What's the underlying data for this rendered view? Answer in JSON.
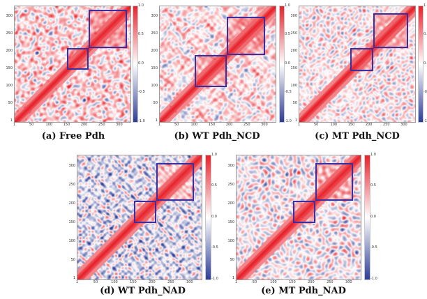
{
  "colors": {
    "positive": "#e8212a",
    "negative": "#2c3d98",
    "neutral": "#ffffff",
    "box_outline": "#3a2fa0"
  },
  "colorbar_ticks": [
    "1.0",
    "0.5",
    "0.0",
    "-0.5",
    "-1.0"
  ],
  "panels": [
    {
      "id": "a",
      "caption": "(a) Free Pdh",
      "y_ticks": [
        "300",
        "250",
        "200",
        "150",
        "100",
        "50",
        "1"
      ],
      "x_ticks": [
        "1",
        "50",
        "100",
        "150",
        "200",
        "250",
        "300"
      ],
      "residue_max": 330,
      "boxes": [
        {
          "from": 150,
          "to": 210
        },
        {
          "from": 210,
          "to": 320
        }
      ]
    },
    {
      "id": "b",
      "caption": "(b) WT Pdh_NCD",
      "y_ticks": [
        "300",
        "250",
        "200",
        "150",
        "100",
        "50",
        "1"
      ],
      "x_ticks": [
        "1",
        "50",
        "100",
        "150",
        "200",
        "250",
        "300"
      ],
      "residue_max": 330,
      "boxes": [
        {
          "from": 100,
          "to": 190
        },
        {
          "from": 190,
          "to": 300
        }
      ]
    },
    {
      "id": "c",
      "caption": "(c) MT Pdh_NCD",
      "y_ticks": [
        "300",
        "250",
        "200",
        "150",
        "100",
        "50",
        "1"
      ],
      "x_ticks": [
        "1",
        "50",
        "100",
        "150",
        "200",
        "250",
        "300"
      ],
      "residue_max": 330,
      "boxes": [
        {
          "from": 145,
          "to": 210
        },
        {
          "from": 210,
          "to": 310
        }
      ]
    },
    {
      "id": "d",
      "caption": "(d) WT Pdh_NAD",
      "y_ticks": [
        "300",
        "250",
        "200",
        "150",
        "100",
        "50",
        "1"
      ],
      "x_ticks": [
        "1",
        "50",
        "100",
        "150",
        "200",
        "250",
        "300"
      ],
      "residue_max": 330,
      "boxes": [
        {
          "from": 150,
          "to": 210
        },
        {
          "from": 210,
          "to": 310
        }
      ]
    },
    {
      "id": "e",
      "caption": "(e) MT Pdh_NAD",
      "y_ticks": [
        "300",
        "250",
        "200",
        "150",
        "100",
        "50",
        "1"
      ],
      "x_ticks": [
        "1",
        "50",
        "100",
        "150",
        "200",
        "250",
        "300"
      ],
      "residue_max": 330,
      "boxes": [
        {
          "from": 150,
          "to": 210
        },
        {
          "from": 210,
          "to": 310
        }
      ]
    }
  ]
}
